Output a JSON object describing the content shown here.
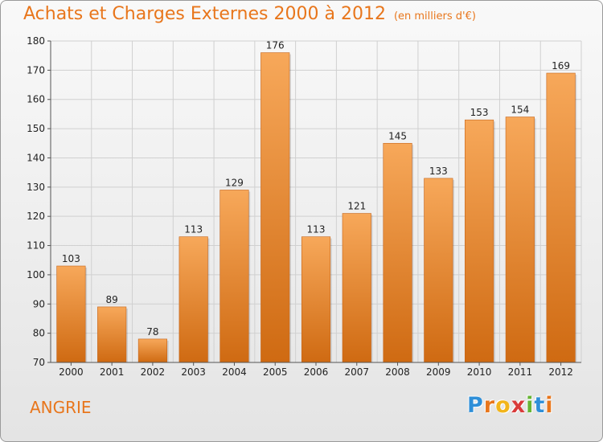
{
  "title": "Achats et Charges Externes 2000 à 2012",
  "subtitle": "(en milliers d'€)",
  "place": "ANGRIE",
  "logo": {
    "letters": [
      "P",
      "r",
      "o",
      "x",
      "i",
      "t",
      "i"
    ],
    "colors": [
      "#2f8fd8",
      "#e8761c",
      "#f2b51b",
      "#d93a3a",
      "#67b534",
      "#2f8fd8",
      "#e8761c"
    ]
  },
  "colors": {
    "bar_top": "#f7a85a",
    "bar_bottom": "#cf6a12",
    "accent": "#e8761c"
  },
  "chart_data": {
    "type": "bar",
    "categories": [
      "2000",
      "2001",
      "2002",
      "2003",
      "2004",
      "2005",
      "2006",
      "2007",
      "2008",
      "2009",
      "2010",
      "2011",
      "2012"
    ],
    "values": [
      103,
      89,
      78,
      113,
      129,
      176,
      113,
      121,
      145,
      133,
      153,
      154,
      169
    ],
    "ylim": [
      70,
      180
    ],
    "yticks": [
      70,
      80,
      90,
      100,
      110,
      120,
      130,
      140,
      150,
      160,
      170,
      180
    ],
    "grid": true
  }
}
